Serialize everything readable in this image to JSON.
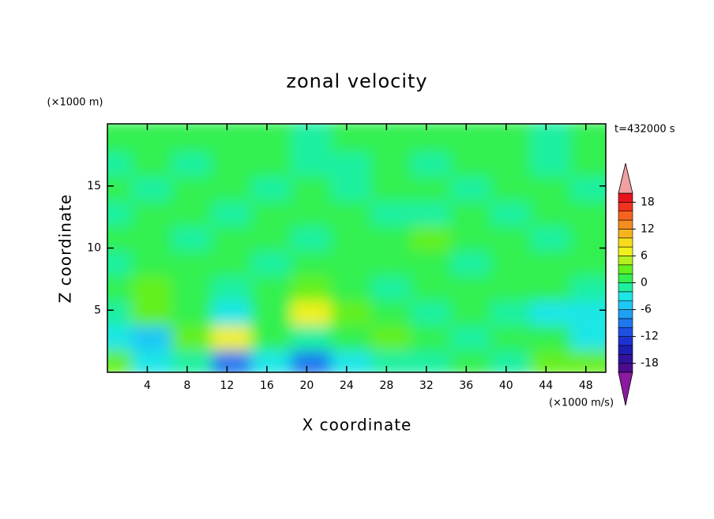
{
  "chart_data": {
    "type": "contour",
    "title": "zonal velocity",
    "x_label": "X coordinate",
    "y_label": "Z coordinate",
    "y_unit": "(×1000 m)",
    "colorbar_unit": "(×1000 m/s)",
    "time_label": "t=432000 s",
    "xlim": [
      0,
      50
    ],
    "ylim": [
      0,
      20
    ],
    "xticks": [
      4,
      8,
      12,
      16,
      20,
      24,
      28,
      32,
      36,
      40,
      44,
      48
    ],
    "yticks": [
      5,
      10,
      15
    ],
    "x": [
      2,
      6,
      10,
      14,
      18,
      22,
      26,
      30,
      34,
      38,
      42,
      46,
      50
    ],
    "y": [
      1,
      3,
      5,
      7,
      9,
      11,
      13,
      15,
      17,
      19
    ],
    "z": [
      [
        3,
        -3,
        -1,
        -9,
        -3,
        -9,
        -3,
        -1,
        -1,
        1,
        -1,
        3,
        3
      ],
      [
        -3,
        -5,
        3,
        6,
        1,
        -1,
        1,
        3,
        1,
        -1,
        1,
        1,
        -3
      ],
      [
        -1,
        3,
        1,
        -3,
        1,
        6,
        3,
        1,
        -1,
        1,
        -1,
        -3,
        -3
      ],
      [
        1,
        3,
        1,
        -1,
        1,
        3,
        1,
        -1,
        1,
        1,
        1,
        1,
        -1
      ],
      [
        -1,
        1,
        1,
        1,
        -1,
        1,
        1,
        1,
        1,
        -1,
        1,
        1,
        1
      ],
      [
        1,
        1,
        -1,
        1,
        1,
        -1,
        1,
        1,
        2.5,
        1,
        1,
        -1,
        1
      ],
      [
        -1,
        1,
        1,
        -1,
        1,
        1,
        1,
        -1,
        -1,
        1,
        -1,
        1,
        1
      ],
      [
        1,
        -1,
        1,
        1,
        -1,
        1,
        -1,
        1,
        1,
        -1,
        1,
        1,
        -1
      ],
      [
        -1,
        1,
        -1,
        1,
        1,
        -1,
        -1,
        1,
        -1,
        1,
        1,
        -1,
        1
      ],
      [
        1,
        1,
        0.5,
        1,
        1,
        -1,
        0.5,
        1,
        1,
        0.5,
        1,
        -1,
        1
      ]
    ],
    "levels": [
      -20,
      -18,
      -16,
      -14,
      -12,
      -10,
      -8,
      -6,
      -4,
      -2,
      0,
      2,
      4,
      6,
      8,
      10,
      12,
      14,
      16,
      18,
      20
    ],
    "colors": [
      "#8a1aa0",
      "#4b0c8c",
      "#32129a",
      "#1e1eb4",
      "#1e32d2",
      "#1e50e6",
      "#1e78f0",
      "#1ea0f5",
      "#1ec8f5",
      "#1ee6e6",
      "#1ef0a0",
      "#32f050",
      "#64f01e",
      "#b4f01e",
      "#f0f01e",
      "#f5dc1e",
      "#f5b41e",
      "#f58c1e",
      "#f5641e",
      "#f0321e",
      "#e6141e",
      "#f0a0a0"
    ],
    "cticks": [
      -18,
      -12,
      -6,
      0,
      6,
      12,
      18
    ]
  }
}
